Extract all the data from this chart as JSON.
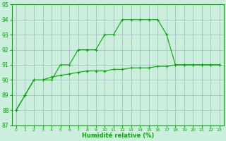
{
  "xlabel": "Humidité relative (%)",
  "x": [
    0,
    1,
    2,
    3,
    4,
    5,
    6,
    7,
    8,
    9,
    10,
    11,
    12,
    13,
    14,
    15,
    16,
    17,
    18,
    19,
    20,
    21,
    22,
    23
  ],
  "line1_y": [
    88,
    89,
    90,
    90,
    90,
    91,
    91,
    92,
    92,
    92,
    93,
    93,
    94,
    94,
    94,
    94,
    94,
    93,
    91,
    91,
    91,
    91,
    91,
    91
  ],
  "line2_y": [
    88,
    89,
    90,
    90,
    90.2,
    90.3,
    90.4,
    90.5,
    90.6,
    90.6,
    90.6,
    90.7,
    90.7,
    90.8,
    90.8,
    90.8,
    90.9,
    90.9,
    91,
    91,
    91,
    91,
    91,
    91
  ],
  "line_color": "#00aa00",
  "bg_color": "#cceedd",
  "grid_color": "#99bbbb",
  "ylim": [
    87,
    95
  ],
  "xlim_min": -0.5,
  "xlim_max": 23.5,
  "yticks": [
    87,
    88,
    89,
    90,
    91,
    92,
    93,
    94,
    95
  ],
  "xticks": [
    0,
    1,
    2,
    3,
    4,
    5,
    6,
    7,
    8,
    9,
    10,
    11,
    12,
    13,
    14,
    15,
    16,
    17,
    18,
    19,
    20,
    21,
    22,
    23
  ]
}
